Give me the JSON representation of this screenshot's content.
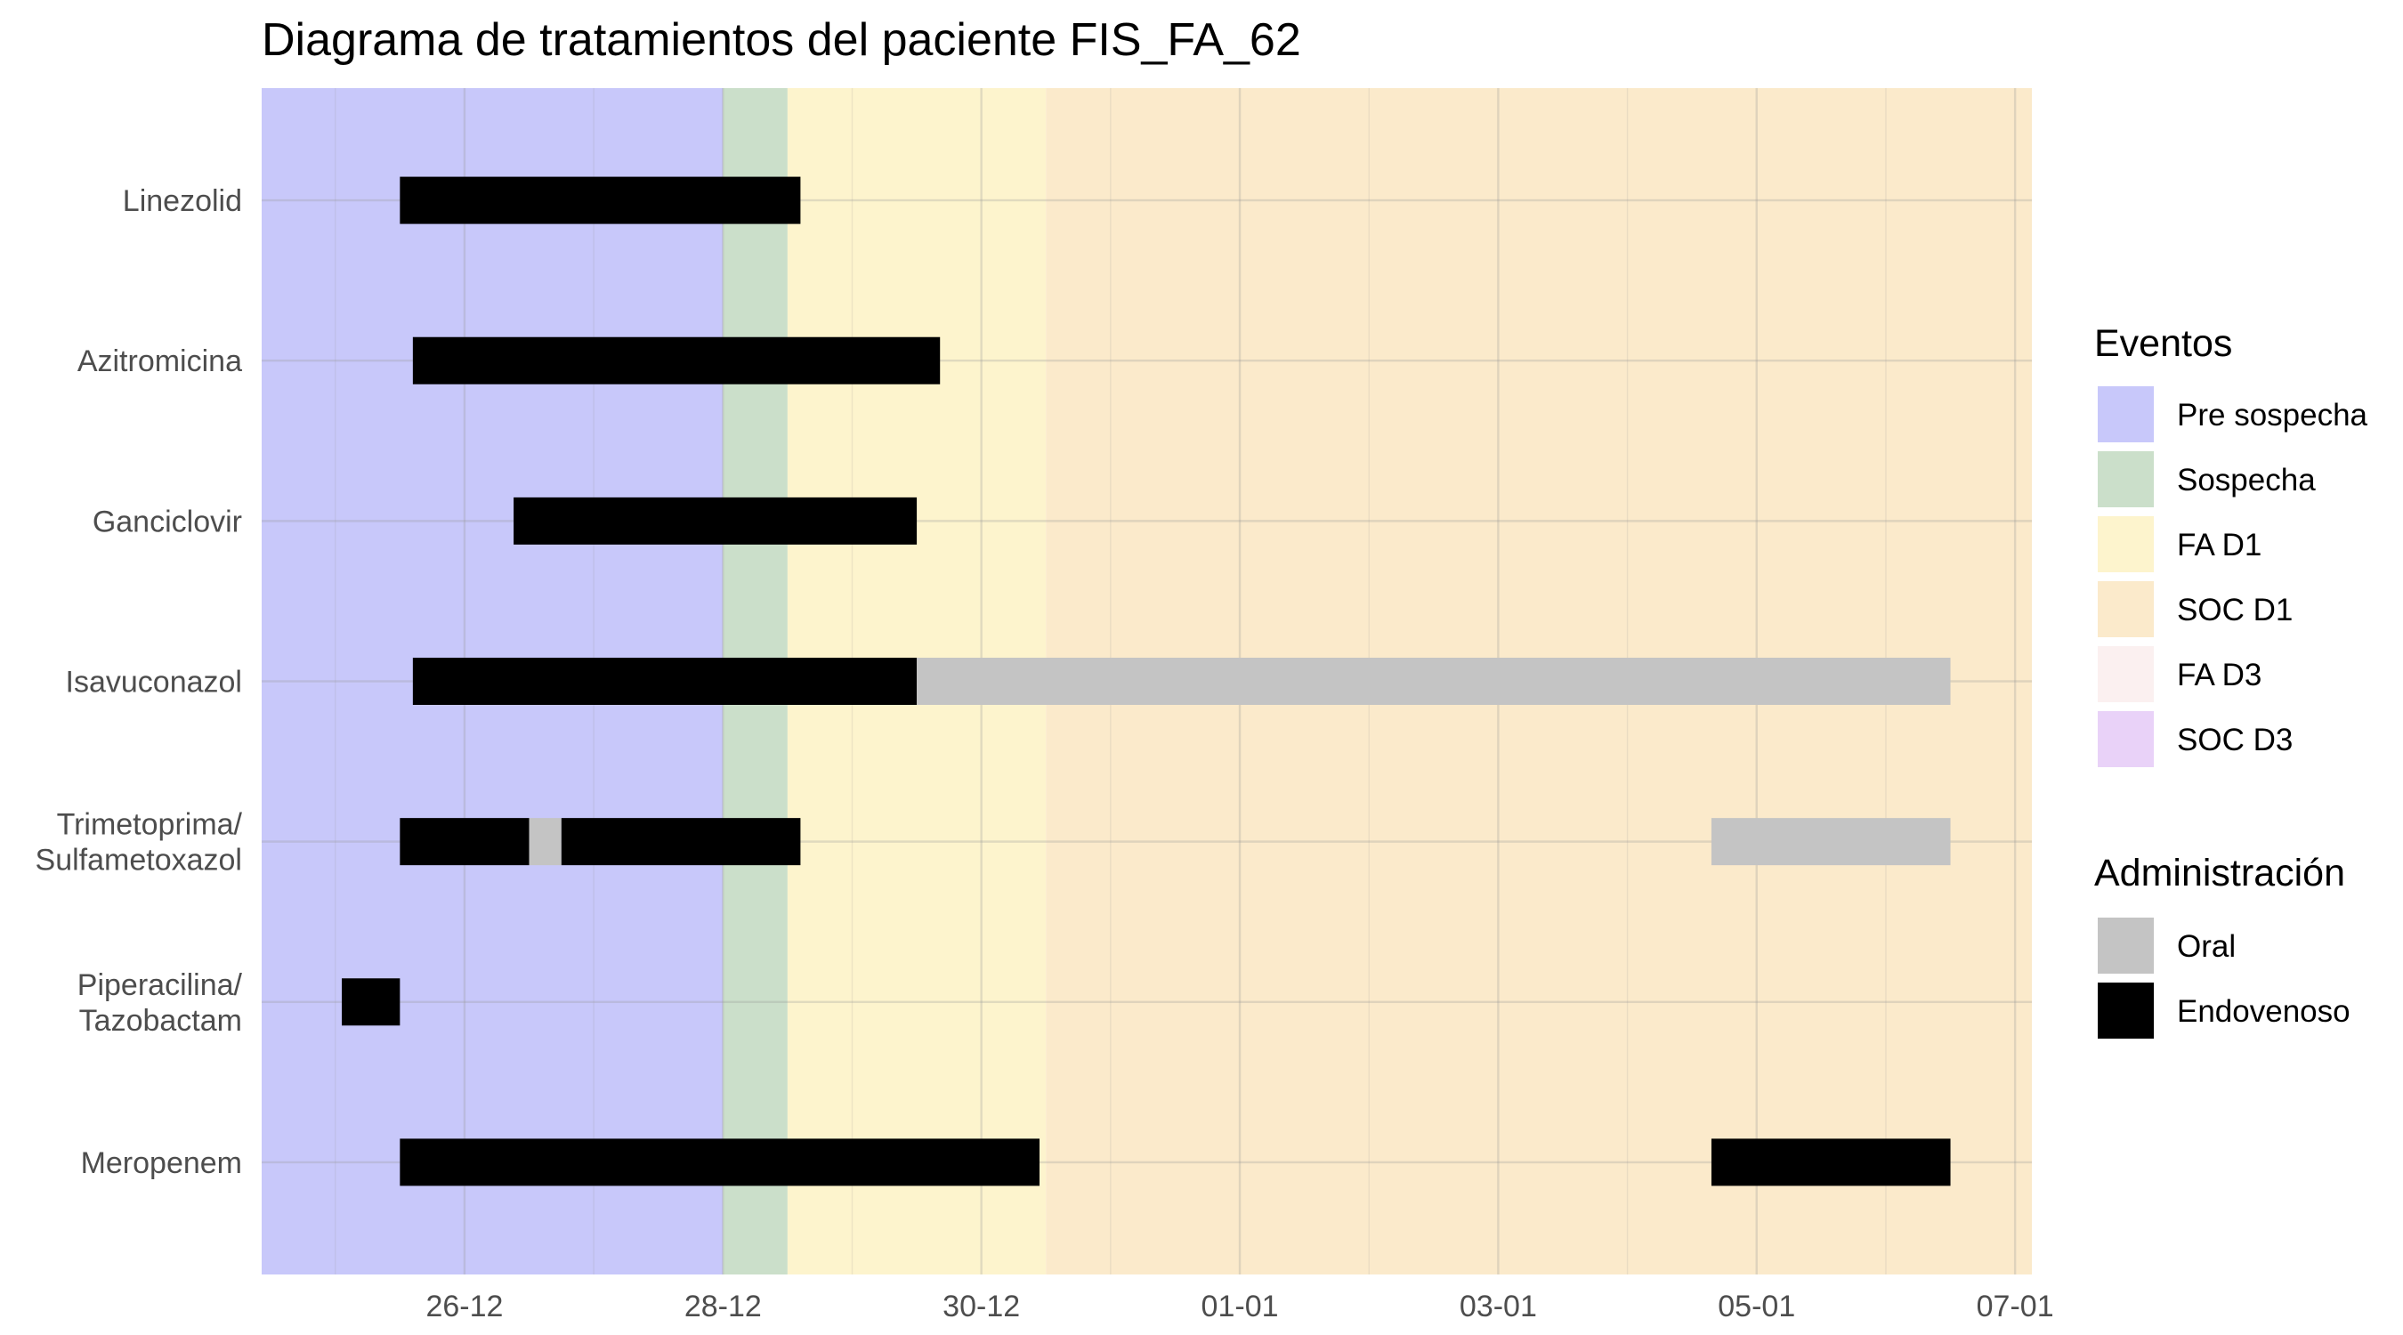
{
  "chart_data": {
    "type": "gantt",
    "title": "Diagrama de tratamientos del paciente FIS_FA_62",
    "x_ticks": [
      "26-12",
      "28-12",
      "30-12",
      "01-01",
      "03-01",
      "05-01",
      "07-01"
    ],
    "x_tick_offsets": [
      0,
      2,
      4,
      6,
      8,
      10,
      12
    ],
    "x_range_offsets": [
      -1.57,
      12.13
    ],
    "x_origin_label": "26-12",
    "phases": [
      {
        "name": "Pre sospecha",
        "start": -1.57,
        "end": 2.0
      },
      {
        "name": "Sospecha",
        "start": 2.0,
        "end": 2.5
      },
      {
        "name": "FA D1",
        "start": 2.5,
        "end": 4.5
      },
      {
        "name": "SOC D1",
        "start": 4.5,
        "end": 12.13
      }
    ],
    "categories": [
      {
        "lines": [
          "Linezolid"
        ]
      },
      {
        "lines": [
          "Azitromicina"
        ]
      },
      {
        "lines": [
          "Ganciclovir"
        ]
      },
      {
        "lines": [
          "Isavuconazol"
        ]
      },
      {
        "lines": [
          "Trimetoprima/",
          "Sulfametoxazol"
        ]
      },
      {
        "lines": [
          "Piperacilina/",
          "Tazobactam"
        ]
      },
      {
        "lines": [
          "Meropenem"
        ]
      }
    ],
    "segments": [
      {
        "row": 0,
        "start": -0.5,
        "end": 2.6,
        "route": "Endovenoso"
      },
      {
        "row": 1,
        "start": -0.4,
        "end": 3.68,
        "route": "Endovenoso"
      },
      {
        "row": 2,
        "start": 0.38,
        "end": 3.5,
        "route": "Endovenoso"
      },
      {
        "row": 3,
        "start": -0.4,
        "end": 3.5,
        "route": "Endovenoso"
      },
      {
        "row": 3,
        "start": 3.5,
        "end": 11.5,
        "route": "Oral"
      },
      {
        "row": 4,
        "start": -0.5,
        "end": 0.5,
        "route": "Endovenoso"
      },
      {
        "row": 4,
        "start": 0.5,
        "end": 0.75,
        "route": "Oral"
      },
      {
        "row": 4,
        "start": 0.75,
        "end": 2.6,
        "route": "Endovenoso"
      },
      {
        "row": 4,
        "start": 9.65,
        "end": 11.5,
        "route": "Oral"
      },
      {
        "row": 5,
        "start": -0.95,
        "end": -0.5,
        "route": "Endovenoso"
      },
      {
        "row": 6,
        "start": -0.5,
        "end": 4.45,
        "route": "Endovenoso"
      },
      {
        "row": 6,
        "start": 9.65,
        "end": 11.5,
        "route": "Endovenoso"
      }
    ],
    "legend": {
      "placement": "right",
      "eventos_title": "Eventos",
      "eventos": [
        {
          "label": "Pre sospecha",
          "color": "#c8c8fa"
        },
        {
          "label": "Sospecha",
          "color": "#cbdfca"
        },
        {
          "label": "FA D1",
          "color": "#fdf4cd"
        },
        {
          "label": "SOC D1",
          "color": "#fbeacb"
        },
        {
          "label": "FA D3",
          "color": "#fbf0f0"
        },
        {
          "label": "SOC D3",
          "color": "#e9d2f8"
        }
      ],
      "admin_title": "Administración",
      "admin": [
        {
          "label": "Oral",
          "color": "#c4c4c4"
        },
        {
          "label": "Endovenoso",
          "color": "#000000"
        }
      ]
    },
    "grid": true
  }
}
